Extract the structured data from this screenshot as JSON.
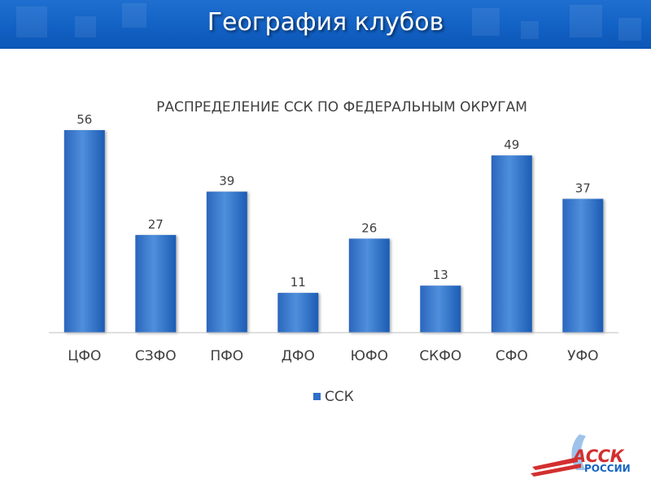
{
  "header": {
    "title": "География клубов"
  },
  "chart_data": {
    "type": "bar",
    "title": "РАСПРЕДЕЛЕНИЕ ССК ПО ФЕДЕРАЛЬНЫМ ОКРУГАМ",
    "categories": [
      "ЦФО",
      "СЗФО",
      "ПФО",
      "ДФО",
      "ЮФО",
      "СКФО",
      "СФО",
      "УФО"
    ],
    "series": [
      {
        "name": "ССК",
        "values": [
          56,
          27,
          39,
          11,
          26,
          13,
          49,
          37
        ]
      }
    ],
    "ylim": [
      0,
      60
    ],
    "grid": false,
    "legend": "bottom",
    "colors": {
      "bar_light": "#4f8fdc",
      "bar_dark": "#1c5cb4",
      "axis": "#bfbfbf",
      "text": "#404040"
    }
  },
  "logo": {
    "line1": "АССК",
    "line2": "РОССИИ",
    "icon": "accc-logo"
  }
}
